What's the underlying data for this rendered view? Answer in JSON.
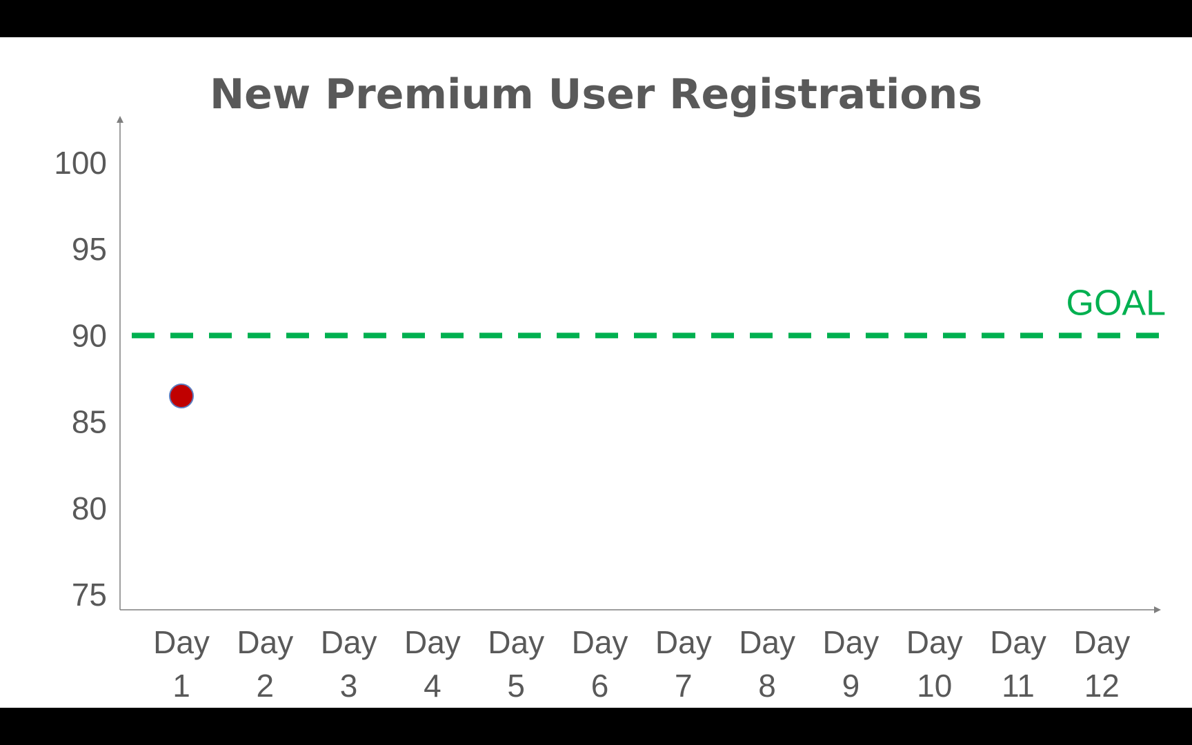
{
  "chart_data": {
    "type": "scatter",
    "title": "New Premium User Registrations",
    "xlabel": "",
    "ylabel": "",
    "categories": [
      [
        "Day",
        "1"
      ],
      [
        "Day",
        "2"
      ],
      [
        "Day",
        "3"
      ],
      [
        "Day",
        "4"
      ],
      [
        "Day",
        "5"
      ],
      [
        "Day",
        "6"
      ],
      [
        "Day",
        "7"
      ],
      [
        "Day",
        "8"
      ],
      [
        "Day",
        "9"
      ],
      [
        "Day",
        "10"
      ],
      [
        "Day",
        "11"
      ],
      [
        "Day",
        "12"
      ]
    ],
    "y_ticks": [
      "75",
      "80",
      "85",
      "90",
      "95",
      "100"
    ],
    "ylim": [
      75,
      100
    ],
    "points": [
      {
        "category_index": 0,
        "value": 86.5
      }
    ],
    "goal": {
      "label": "GOAL",
      "value": 90
    },
    "grid": false,
    "legend": "none",
    "colors": {
      "point_fill": "#c00000",
      "point_stroke": "#5b7bbf",
      "goal": "#00b050",
      "axis": "#7f7f7f",
      "text": "#595959"
    }
  }
}
